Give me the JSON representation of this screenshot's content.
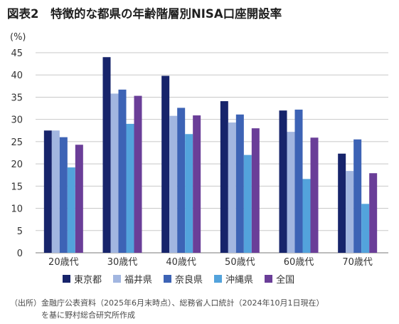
{
  "title": "図表2　特徴的な都県の年齢階層別NISA口座開設率",
  "source": {
    "line1": "（出所）金融庁公表資料（2025年6月末時点）、総務省人口統計（2024年10月1日現在）",
    "line2": "を基に野村総合研究所作成"
  },
  "chart_data": {
    "type": "bar",
    "unit_label": "(%)",
    "ylim": [
      0,
      45
    ],
    "yticks": [
      0,
      5,
      10,
      15,
      20,
      25,
      30,
      35,
      40,
      45
    ],
    "grid": true,
    "legend_position": "bottom",
    "categories": [
      "20歳代",
      "30歳代",
      "40歳代",
      "50歳代",
      "60歳代",
      "70歳代"
    ],
    "series": [
      {
        "name": "東京都",
        "color": "#17246b",
        "values": [
          27.5,
          44.0,
          39.8,
          34.1,
          32.0,
          22.3
        ]
      },
      {
        "name": "福井県",
        "color": "#a2b6e0",
        "values": [
          27.5,
          35.8,
          30.8,
          29.3,
          27.2,
          18.4
        ]
      },
      {
        "name": "奈良県",
        "color": "#3d63b5",
        "values": [
          26.0,
          36.7,
          32.6,
          31.1,
          32.2,
          25.5
        ]
      },
      {
        "name": "沖縄県",
        "color": "#53a3dc",
        "values": [
          19.2,
          29.0,
          26.7,
          22.0,
          16.6,
          11.0
        ]
      },
      {
        "name": "全国",
        "color": "#6a3e98",
        "values": [
          24.3,
          35.3,
          30.9,
          28.0,
          25.9,
          17.9
        ]
      }
    ]
  }
}
